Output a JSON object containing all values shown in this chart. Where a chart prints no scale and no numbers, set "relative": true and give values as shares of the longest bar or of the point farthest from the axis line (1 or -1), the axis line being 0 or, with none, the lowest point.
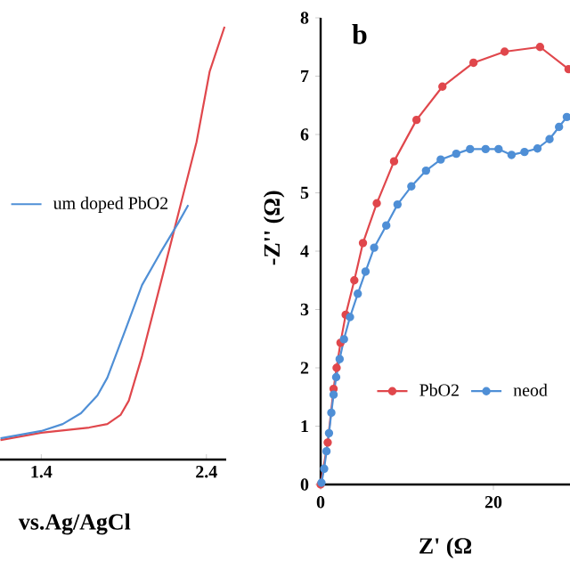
{
  "chart_data": [
    {
      "type": "line",
      "relative": true,
      "xlabel": "vs.Ag/AgCl",
      "xlim": [
        1.15,
        2.52
      ],
      "xticks": [
        1.4,
        2.4
      ],
      "legend": "left",
      "marker": "none",
      "tick_labels": "x",
      "series": [
        {
          "color": "#e0474c",
          "x": [
            1.153,
            1.4,
            1.69,
            1.8,
            1.88,
            1.93,
            2.01,
            2.12,
            2.23,
            2.34,
            2.42,
            2.51
          ],
          "values": [
            0.045,
            0.062,
            0.074,
            0.082,
            0.103,
            0.136,
            0.239,
            0.403,
            0.568,
            0.733,
            0.897,
            1.0
          ]
        },
        {
          "name": "um doped PbO2",
          "color": "#4f8fd6",
          "x": [
            1.153,
            1.4,
            1.53,
            1.64,
            1.74,
            1.8,
            1.91,
            2.01,
            2.12,
            2.23,
            2.29
          ],
          "values": [
            0.049,
            0.066,
            0.082,
            0.107,
            0.148,
            0.189,
            0.3,
            0.403,
            0.477,
            0.547,
            0.588
          ]
        }
      ]
    },
    {
      "type": "line",
      "xlabel": "Z' (Ω",
      "ylabel": "-Z'' (Ω)",
      "annotations": [
        "b"
      ],
      "xlim": [
        0,
        28.87
      ],
      "ylim": [
        0,
        8
      ],
      "xticks": [
        0,
        20
      ],
      "yticks": [
        0,
        1,
        2,
        3,
        4,
        5,
        6,
        7,
        8
      ],
      "legend": "bottom",
      "marker": "circle",
      "series": [
        {
          "name": "PbO2",
          "color": "#e0474c",
          "x": [
            0,
            0.34,
            0.82,
            1.24,
            1.5,
            1.85,
            2.3,
            2.9,
            3.9,
            4.9,
            6.5,
            8.5,
            11.1,
            14.1,
            17.7,
            21.3,
            25.4,
            28.7
          ],
          "values": [
            0,
            null,
            0.72,
            null,
            1.64,
            2.0,
            2.43,
            2.91,
            3.5,
            4.14,
            4.82,
            5.54,
            6.25,
            6.82,
            7.23,
            7.42,
            7.5,
            7.12
          ]
        },
        {
          "name": "neod",
          "color": "#4f8fd6",
          "x": [
            0.1,
            0.41,
            0.68,
            0.97,
            1.24,
            1.5,
            1.8,
            2.2,
            2.7,
            3.4,
            4.3,
            5.2,
            6.2,
            7.6,
            8.9,
            10.5,
            12.2,
            13.9,
            15.7,
            17.3,
            19.1,
            20.6,
            22.1,
            23.6,
            25.1,
            26.5,
            27.6,
            28.5
          ],
          "values": [
            0.03,
            0.27,
            0.57,
            0.88,
            1.23,
            1.54,
            1.84,
            2.15,
            2.49,
            2.87,
            3.27,
            3.65,
            4.06,
            4.44,
            4.8,
            5.11,
            5.38,
            5.57,
            5.67,
            5.75,
            5.75,
            5.75,
            5.65,
            5.7,
            5.76,
            5.92,
            6.13,
            6.3
          ]
        }
      ]
    }
  ]
}
